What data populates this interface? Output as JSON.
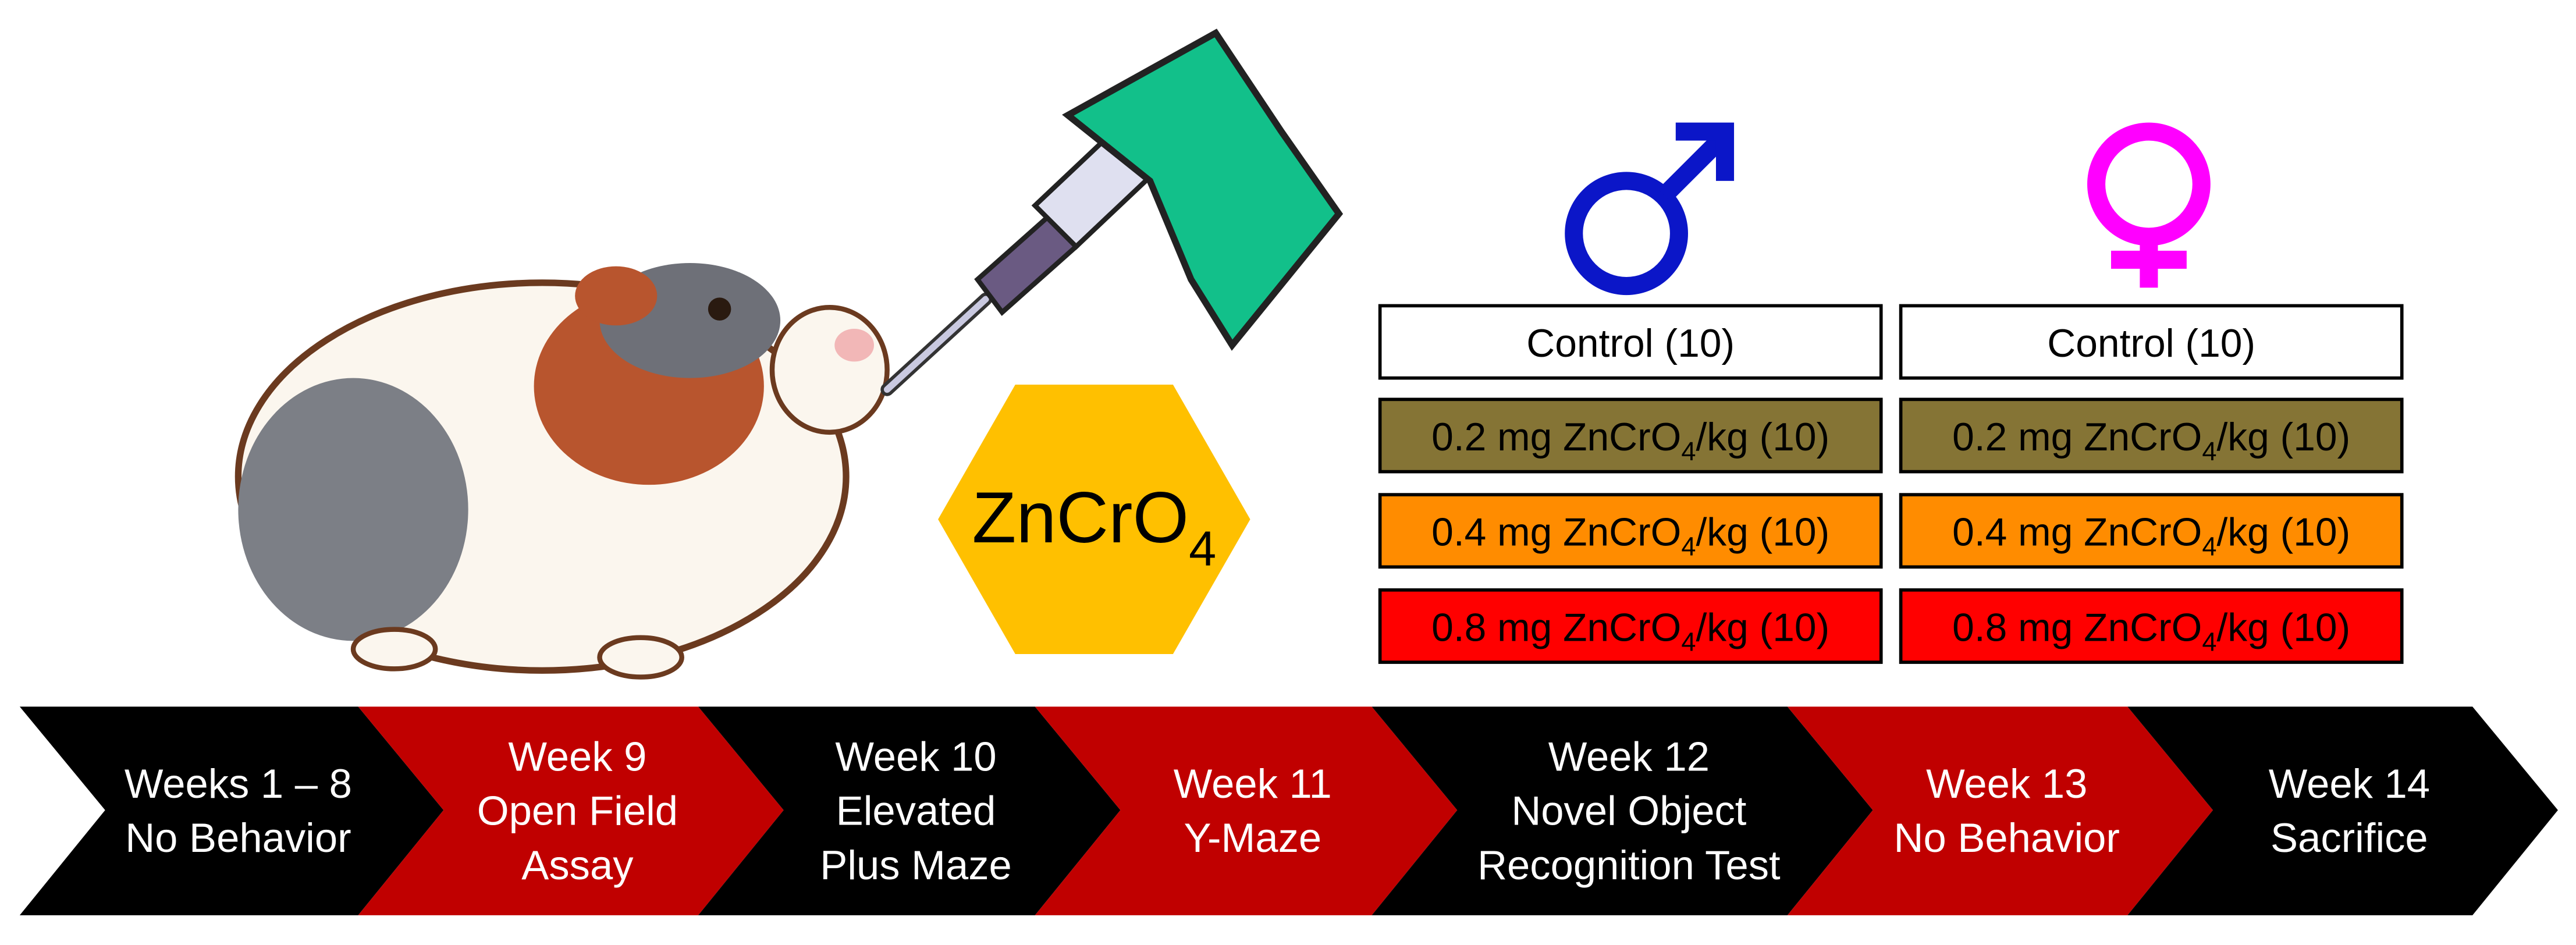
{
  "compound": {
    "name": "ZnCrO",
    "subscript": "4"
  },
  "groups": [
    {
      "control": "Control (10)",
      "doses": [
        {
          "prefix": "0.2 mg ZnCrO",
          "subscript": "4",
          "suffix": "/kg (10)"
        },
        {
          "prefix": "0.4 mg ZnCrO",
          "subscript": "4",
          "suffix": "/kg (10)"
        },
        {
          "prefix": "0.8 mg ZnCrO",
          "subscript": "4",
          "suffix": "/kg (10)"
        }
      ]
    },
    {
      "control": "Control (10)",
      "doses": [
        {
          "prefix": "0.2 mg ZnCrO",
          "subscript": "4",
          "suffix": "/kg (10)"
        },
        {
          "prefix": "0.4 mg ZnCrO",
          "subscript": "4",
          "suffix": "/kg (10)"
        },
        {
          "prefix": "0.8 mg ZnCrO",
          "subscript": "4",
          "suffix": "/kg (10)"
        }
      ]
    }
  ],
  "timeline": [
    {
      "lines": [
        "Weeks 1 – 8",
        "No Behavior"
      ]
    },
    {
      "lines": [
        "Week 9",
        "Open Field",
        "Assay"
      ]
    },
    {
      "lines": [
        "Week 10",
        "Elevated",
        "Plus Maze"
      ]
    },
    {
      "lines": [
        "Week 11",
        "Y-Maze"
      ]
    },
    {
      "lines": [
        "Week 12",
        "Novel Object",
        "Recognition Test"
      ]
    },
    {
      "lines": [
        "Week 13",
        "No Behavior"
      ]
    },
    {
      "lines": [
        "Week 14",
        "Sacrifice"
      ]
    }
  ]
}
